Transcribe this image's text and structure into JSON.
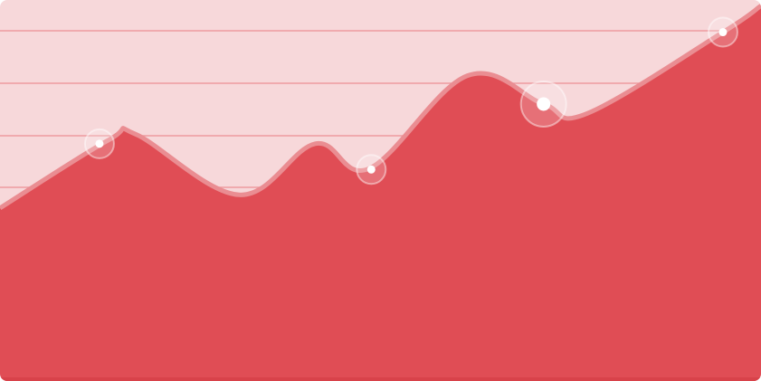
{
  "chart_data": {
    "type": "area",
    "title": "",
    "xlabel": "",
    "ylabel": "",
    "grid": true,
    "legend": "none",
    "xlim": [
      0,
      14
    ],
    "ylim": [
      0,
      100
    ],
    "series": [
      {
        "values": [
          {
            "x": 0,
            "y": 45
          },
          {
            "x": 2,
            "y": 63
          },
          {
            "x": 2.5,
            "y": 64.5
          },
          {
            "x": 4.4,
            "y": 48.5
          },
          {
            "x": 5.8,
            "y": 62
          },
          {
            "x": 6.8,
            "y": 55.5
          },
          {
            "x": 8.6,
            "y": 80
          },
          {
            "x": 10,
            "y": 72.5
          },
          {
            "x": 10.8,
            "y": 70
          },
          {
            "x": 13.3,
            "y": 91.5
          },
          {
            "x": 14,
            "y": 98.5
          }
        ]
      }
    ],
    "highlighted_points": [
      {
        "x": 1.83,
        "y": 62,
        "emphasis": "normal"
      },
      {
        "x": 6.83,
        "y": 55.2,
        "emphasis": "normal"
      },
      {
        "x": 10,
        "y": 72.5,
        "emphasis": "large"
      },
      {
        "x": 13.3,
        "y": 91.5,
        "emphasis": "normal"
      }
    ]
  },
  "colors": {
    "background": "#f7d8da",
    "area_fill": "#e04d55",
    "area_stroke": "#ea8d92",
    "grid_line": "#e66a71",
    "bottom_edge": "#d8424a",
    "marker_halo": "#ffffff",
    "marker_dot": "#ffffff"
  }
}
